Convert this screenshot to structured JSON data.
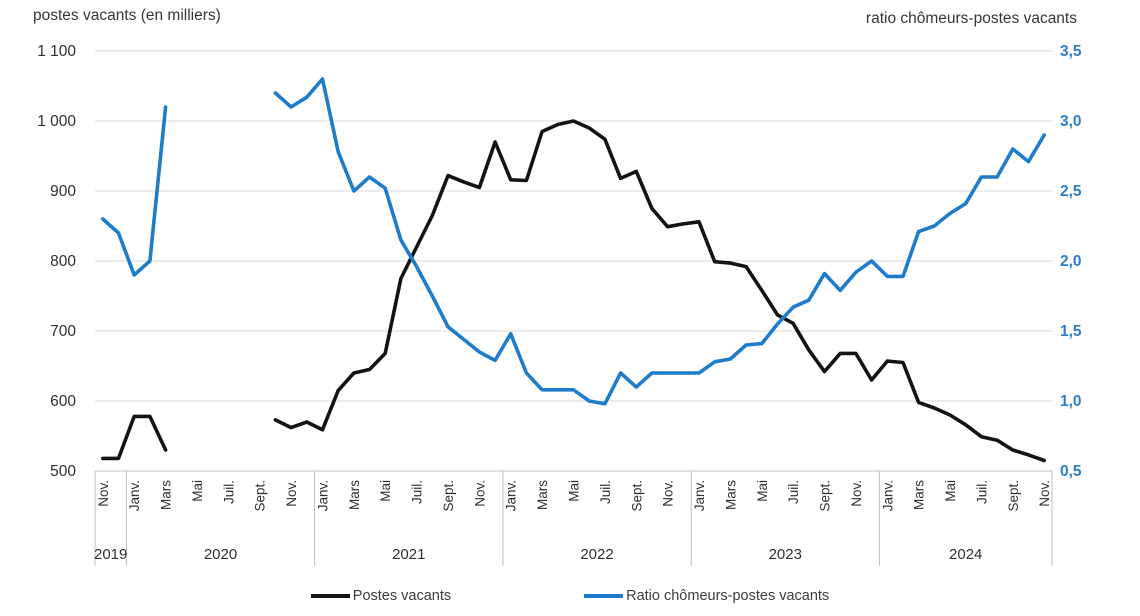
{
  "chart": {
    "left_axis_title": "postes vacants (en milliers)",
    "right_axis_title": "ratio chômeurs-postes vacants",
    "legend": [
      {
        "label": "Postes vacants",
        "color": "#141414"
      },
      {
        "label": "Ratio chômeurs-postes vacants",
        "color": "#1e7ccb"
      }
    ]
  },
  "chart_data": {
    "type": "line",
    "dual_axis": true,
    "x_start": "Nov. 2019",
    "x_end": "Nov. 2024",
    "months_total": 61,
    "x_tick_labels": [
      "Nov.",
      "Janv.",
      "Mars",
      "Mai",
      "Juil.",
      "Sept.",
      "Nov.",
      "Janv.",
      "Mars",
      "Mai",
      "Juil.",
      "Sept.",
      "Nov.",
      "Janv.",
      "Mars",
      "Mai",
      "Juil.",
      "Sept.",
      "Nov.",
      "Janv.",
      "Mars",
      "Mai",
      "Juil.",
      "Sept.",
      "Nov.",
      "Janv.",
      "Mars",
      "Mai",
      "Juil.",
      "Sept.",
      "Nov."
    ],
    "x_tick_month_offsets": [
      0,
      2,
      4,
      6,
      8,
      10,
      12,
      14,
      16,
      18,
      20,
      22,
      24,
      26,
      28,
      30,
      32,
      34,
      36,
      38,
      40,
      42,
      44,
      46,
      48,
      50,
      52,
      54,
      56,
      58,
      60
    ],
    "year_groups": [
      {
        "label": "2019",
        "start": 0,
        "end": 1
      },
      {
        "label": "2020",
        "start": 2,
        "end": 13
      },
      {
        "label": "2021",
        "start": 14,
        "end": 25
      },
      {
        "label": "2022",
        "start": 26,
        "end": 37
      },
      {
        "label": "2023",
        "start": 38,
        "end": 49
      },
      {
        "label": "2024",
        "start": 50,
        "end": 60
      }
    ],
    "left_axis": {
      "title": "postes vacants (en milliers)",
      "min": 500,
      "max": 1100,
      "step": 100,
      "tick_labels": [
        "500",
        "600",
        "700",
        "800",
        "900",
        "1 000",
        "1 100"
      ],
      "color": "#303030"
    },
    "right_axis": {
      "title": "ratio chômeurs-postes vacants",
      "min": 0.5,
      "max": 3.5,
      "step": 0.5,
      "tick_labels": [
        "0,5",
        "1,0",
        "1,5",
        "2,0",
        "2,5",
        "3,0",
        "3,5"
      ],
      "color": "#2b7fc7"
    },
    "grid_color": "#d9d9d9",
    "axis_line_color": "#bfbfbf",
    "series": [
      {
        "name": "Postes vacants",
        "axis": "left",
        "color": "#141414",
        "values": [
          518,
          518,
          578,
          578,
          530,
          null,
          null,
          null,
          null,
          null,
          null,
          573,
          562,
          570,
          559,
          615,
          640,
          645,
          668,
          775,
          820,
          865,
          922,
          913,
          905,
          970,
          916,
          915,
          985,
          995,
          1000,
          990,
          974,
          918,
          928,
          875,
          849,
          853,
          856,
          799,
          797,
          792,
          758,
          723,
          711,
          673,
          642,
          668,
          668,
          630,
          657,
          655,
          598,
          590,
          580,
          566,
          549,
          544,
          530,
          523,
          515
        ]
      },
      {
        "name": "Ratio chômeurs-postes vacants",
        "axis": "right",
        "color": "#1e7ccb",
        "values": [
          2.3,
          2.2,
          1.9,
          2.0,
          3.1,
          null,
          null,
          null,
          null,
          null,
          null,
          3.2,
          3.1,
          3.17,
          3.3,
          2.78,
          2.5,
          2.6,
          2.52,
          2.15,
          1.96,
          1.75,
          1.53,
          1.44,
          1.35,
          1.29,
          1.48,
          1.2,
          1.08,
          1.08,
          1.08,
          1.0,
          0.98,
          1.2,
          1.1,
          1.2,
          1.2,
          1.2,
          1.2,
          1.28,
          1.3,
          1.4,
          1.41,
          1.55,
          1.67,
          1.72,
          1.91,
          1.79,
          1.92,
          2.0,
          1.89,
          1.89,
          2.21,
          2.25,
          2.34,
          2.41,
          2.6,
          2.6,
          2.8,
          2.71,
          2.9
        ]
      }
    ]
  }
}
